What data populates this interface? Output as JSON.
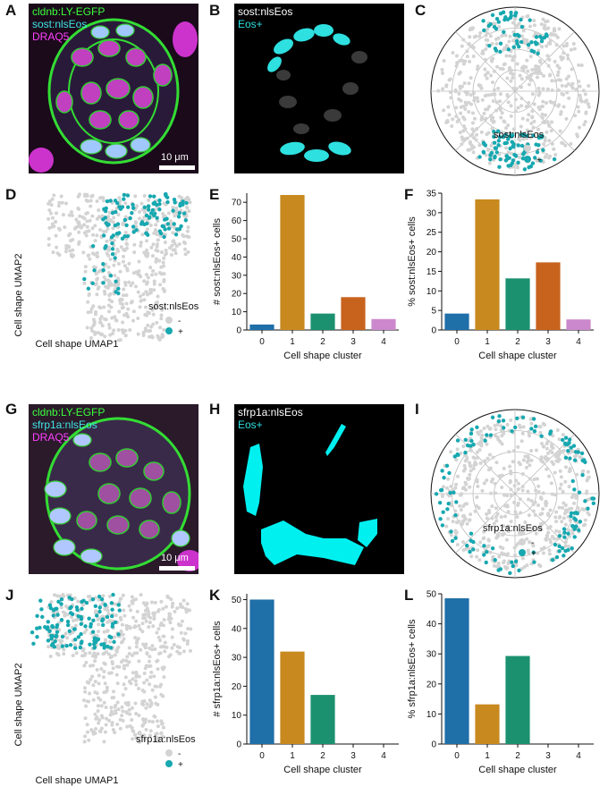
{
  "panels": {
    "A": {
      "letter": "A",
      "labels": [
        "cldnb:LY-EGFP",
        "sost:nlsEos",
        "DRAQ5"
      ],
      "label_colors": [
        "#3cff3c",
        "#40e6e6",
        "#ff40ff"
      ],
      "scalebar": "10 μm"
    },
    "B": {
      "letter": "B",
      "labels": [
        "sost:nlsEos",
        "Eos+"
      ],
      "label_colors": [
        "#ffffff",
        "#2ee0e0"
      ]
    },
    "C": {
      "letter": "C",
      "legend_title": "sost:nlsEos",
      "legend_items": [
        "-",
        "+"
      ]
    },
    "D": {
      "letter": "D",
      "xlabel": "Cell shape UMAP1",
      "ylabel": "Cell shape UMAP2",
      "legend_title": "sost:nlsEos",
      "legend_items": [
        "-",
        "+"
      ]
    },
    "E": {
      "letter": "E"
    },
    "F": {
      "letter": "F"
    },
    "G": {
      "letter": "G",
      "labels": [
        "cldnb:LY-EGFP",
        "sfrp1a:nlsEos",
        "DRAQ5"
      ],
      "label_colors": [
        "#3cff3c",
        "#40e6e6",
        "#ff40ff"
      ],
      "scalebar": "10 μm"
    },
    "H": {
      "letter": "H",
      "labels": [
        "sfrp1a:nlsEos",
        "Eos+"
      ],
      "label_colors": [
        "#ffffff",
        "#2ee0e0"
      ]
    },
    "I": {
      "letter": "I",
      "legend_title": "sfrp1a:nlsEos",
      "legend_items": [
        "-",
        "+"
      ]
    },
    "J": {
      "letter": "J",
      "xlabel": "Cell shape UMAP1",
      "ylabel": "Cell shape UMAP2",
      "legend_title": "sfrp1a:nlsEos",
      "legend_items": [
        "-",
        "+"
      ]
    },
    "K": {
      "letter": "K"
    },
    "L": {
      "letter": "L"
    }
  },
  "colors": {
    "neg": "#d3d3d3",
    "pos": "#17a8b0",
    "c0": "#1f6fa8",
    "c1": "#c8891e",
    "c2": "#1b9170",
    "c3": "#c8631e",
    "c4": "#cc88cc"
  },
  "chart_data": [
    {
      "id": "E",
      "type": "bar",
      "categories": [
        "0",
        "1",
        "2",
        "3",
        "4"
      ],
      "values": [
        3,
        74,
        9,
        18,
        6
      ],
      "xlabel": "Cell shape cluster",
      "ylabel": "# sost:nlsEos+ cells",
      "ylim": [
        0,
        75
      ],
      "yticks": [
        0,
        10,
        20,
        30,
        40,
        50,
        60,
        70
      ]
    },
    {
      "id": "F",
      "type": "bar",
      "categories": [
        "0",
        "1",
        "2",
        "3",
        "4"
      ],
      "values": [
        4.2,
        33.4,
        13.2,
        17.3,
        2.7
      ],
      "xlabel": "Cell shape cluster",
      "ylabel": "% sost:nlsEos+ cells",
      "ylim": [
        0,
        35
      ],
      "yticks": [
        0,
        5,
        10,
        15,
        20,
        25,
        30,
        35
      ]
    },
    {
      "id": "K",
      "type": "bar",
      "categories": [
        "0",
        "1",
        "2",
        "3",
        "4"
      ],
      "values": [
        50,
        32,
        17,
        0,
        0
      ],
      "xlabel": "Cell shape cluster",
      "ylabel": "# sfrp1a:nlsEos+ cells",
      "ylim": [
        0,
        52
      ],
      "yticks": [
        0,
        10,
        20,
        30,
        40,
        50
      ]
    },
    {
      "id": "L",
      "type": "bar",
      "categories": [
        "0",
        "1",
        "2",
        "3",
        "4"
      ],
      "values": [
        48.5,
        13.2,
        29.3,
        0,
        0
      ],
      "xlabel": "Cell shape cluster",
      "ylabel": "% sfrp1a:nlsEos+ cells",
      "ylim": [
        0,
        50
      ],
      "yticks": [
        0,
        10,
        20,
        30,
        40,
        50
      ]
    }
  ]
}
